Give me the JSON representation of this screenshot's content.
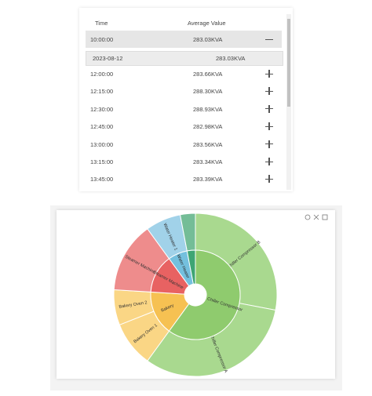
{
  "table": {
    "headers": [
      "Time",
      "Average Value"
    ],
    "rows": [
      [
        "10:00:00",
        "283.03KVA"
      ],
      [
        "12:00:00",
        "283.66KVA"
      ],
      [
        "12:15:00",
        "288.30KVA"
      ],
      [
        "12:30:00",
        "288.93KVA"
      ],
      [
        "12:45:00",
        "282.98KVA"
      ],
      [
        "13:00:00",
        "283.56KVA"
      ],
      [
        "13:15:00",
        "283.34KVA"
      ],
      [
        "13:45:00",
        "283.39KVA"
      ]
    ],
    "expanded_row": [
      "2023-08-12",
      "283.03KVA"
    ]
  },
  "chart_data": {
    "type": "sunburst",
    "nodes": [
      {
        "name": "Chiller Compressor",
        "color": "#8fcb6e",
        "children": [
          {
            "name": "Chiller Compressor B",
            "color": "#a9d98f",
            "value": 28
          },
          {
            "name": "Chiller Compressor A",
            "color": "#a9d98f",
            "value": 32
          }
        ]
      },
      {
        "name": "Bakery",
        "color": "#f6c152",
        "children": [
          {
            "name": "Bakery Oven 1",
            "color": "#fad685",
            "value": 9
          },
          {
            "name": "Bakery Oven 2",
            "color": "#fad685",
            "value": 7
          }
        ]
      },
      {
        "name": "Steamer Machine",
        "color": "#e86262",
        "children": [
          {
            "name": "Steamer Machine",
            "color": "#ee8c8c",
            "value": 14
          }
        ]
      },
      {
        "name": "Water Heater",
        "color": "#74c0de",
        "children": [
          {
            "name": "Water Heater 1",
            "color": "#a1d2e9",
            "value": 7
          }
        ]
      },
      {
        "name": null,
        "color": "#3ea574",
        "children": [
          {
            "name": null,
            "color": "#74bd97",
            "value": 3
          }
        ]
      }
    ]
  }
}
